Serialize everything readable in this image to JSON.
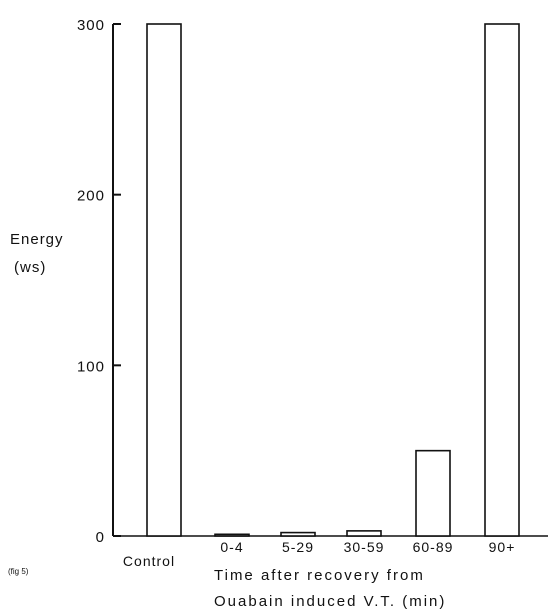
{
  "chart_data": {
    "type": "bar",
    "categories": [
      "Control",
      "0-4",
      "5-29",
      "30-59",
      "60-89",
      "90+"
    ],
    "values": [
      300,
      1,
      2,
      3,
      50,
      300
    ],
    "ylim": [
      0,
      300
    ],
    "yticks": [
      0,
      100,
      200,
      300
    ],
    "ylabel": [
      "Energy",
      "(ws)"
    ],
    "xlabel": [
      "Time after recovery from",
      "Ouabain induced V.T. (min)"
    ],
    "grid": false,
    "legend": "none"
  },
  "figure_label": "(fig 5)",
  "colors": {
    "bar_fill": "#ffffff",
    "stroke": "#111111"
  }
}
